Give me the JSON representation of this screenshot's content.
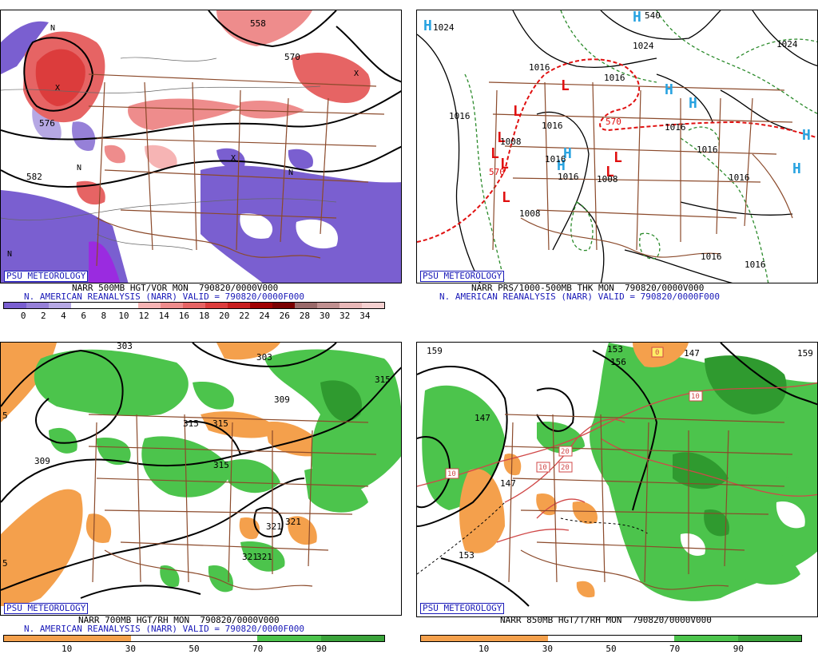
{
  "panels": [
    {
      "id": "vort500",
      "badge": "PSU METEOROLOGY",
      "line1": "NARR 500MB HGT/VOR MON  790820/0000V000",
      "line2": "N. AMERICAN REANALYSIS (NARR) VALID = 790820/0000F000",
      "colorbar": {
        "colors": [
          "#7a5fd0",
          "#9680d8",
          "#b6a8e4",
          "#ffffff",
          "#ffffff",
          "#ffffff",
          "#f6b4b4",
          "#ee8c8c",
          "#e66464",
          "#dc3c3c",
          "#c81e1e",
          "#a00000",
          "#7a0000",
          "#9a6a6a",
          "#c09090",
          "#e8b8b8",
          "#f4d0d0"
        ],
        "labels": [
          "0",
          "2",
          "4",
          "6",
          "8",
          "10",
          "12",
          "14",
          "16",
          "18",
          "20",
          "22",
          "24",
          "26",
          "28",
          "30",
          "32",
          "34"
        ]
      },
      "labels": [
        "558",
        "570",
        "576",
        "582",
        "N",
        "N",
        "N",
        "N",
        "X",
        "X",
        "X"
      ]
    },
    {
      "id": "pres",
      "badge": "PSU METEOROLOGY",
      "line1": "NARR PRS/1000-500MB THK MON  790820/0000V000",
      "line2": "N. AMERICAN REANALYSIS (NARR) VALID = 790820/0000F000",
      "highs": [
        "H",
        "H",
        "H",
        "H",
        "H",
        "H",
        "H",
        "H"
      ],
      "lows": [
        "L",
        "L",
        "L",
        "L",
        "L",
        "L",
        "L",
        "L"
      ],
      "labels": [
        "1024",
        "1024",
        "1016",
        "1016",
        "1008",
        "1008",
        "1016",
        "1016",
        "1016",
        "1016",
        "1008",
        "1008",
        "1024",
        "540",
        "570",
        "570",
        "1016",
        "1016"
      ]
    },
    {
      "id": "rh700",
      "badge": "PSU METEOROLOGY",
      "line1": "NARR 700MB HGT/RH MON  790820/0000V000",
      "line2": "N. AMERICAN REANALYSIS (NARR) VALID = 790820/0000F000",
      "colorbar": {
        "colors": [
          "#f4a04c",
          "#f4a04c",
          "#ffffff",
          "#ffffff",
          "#4cc44c",
          "#3aa33a"
        ],
        "labels": [
          "10",
          "30",
          "50",
          "70",
          "90"
        ]
      },
      "labels": [
        "303",
        "303",
        "315",
        "309",
        "315",
        "315",
        "309",
        "315",
        "321",
        "321",
        "321",
        "321",
        "5",
        "5"
      ]
    },
    {
      "id": "t850",
      "badge": "PSU METEOROLOGY",
      "line1": "NARR 850MB HGT/T/RH MON  790820/0000V000",
      "colorbar": {
        "colors": [
          "#f4a04c",
          "#f4a04c",
          "#ffffff",
          "#ffffff",
          "#4cc44c",
          "#3aa33a"
        ],
        "labels": [
          "10",
          "30",
          "50",
          "70",
          "90"
        ]
      },
      "labels": [
        "159",
        "159",
        "153",
        "156",
        "147",
        "147",
        "147",
        "153",
        "0",
        "10",
        "10",
        "10",
        "20",
        "20"
      ]
    }
  ]
}
